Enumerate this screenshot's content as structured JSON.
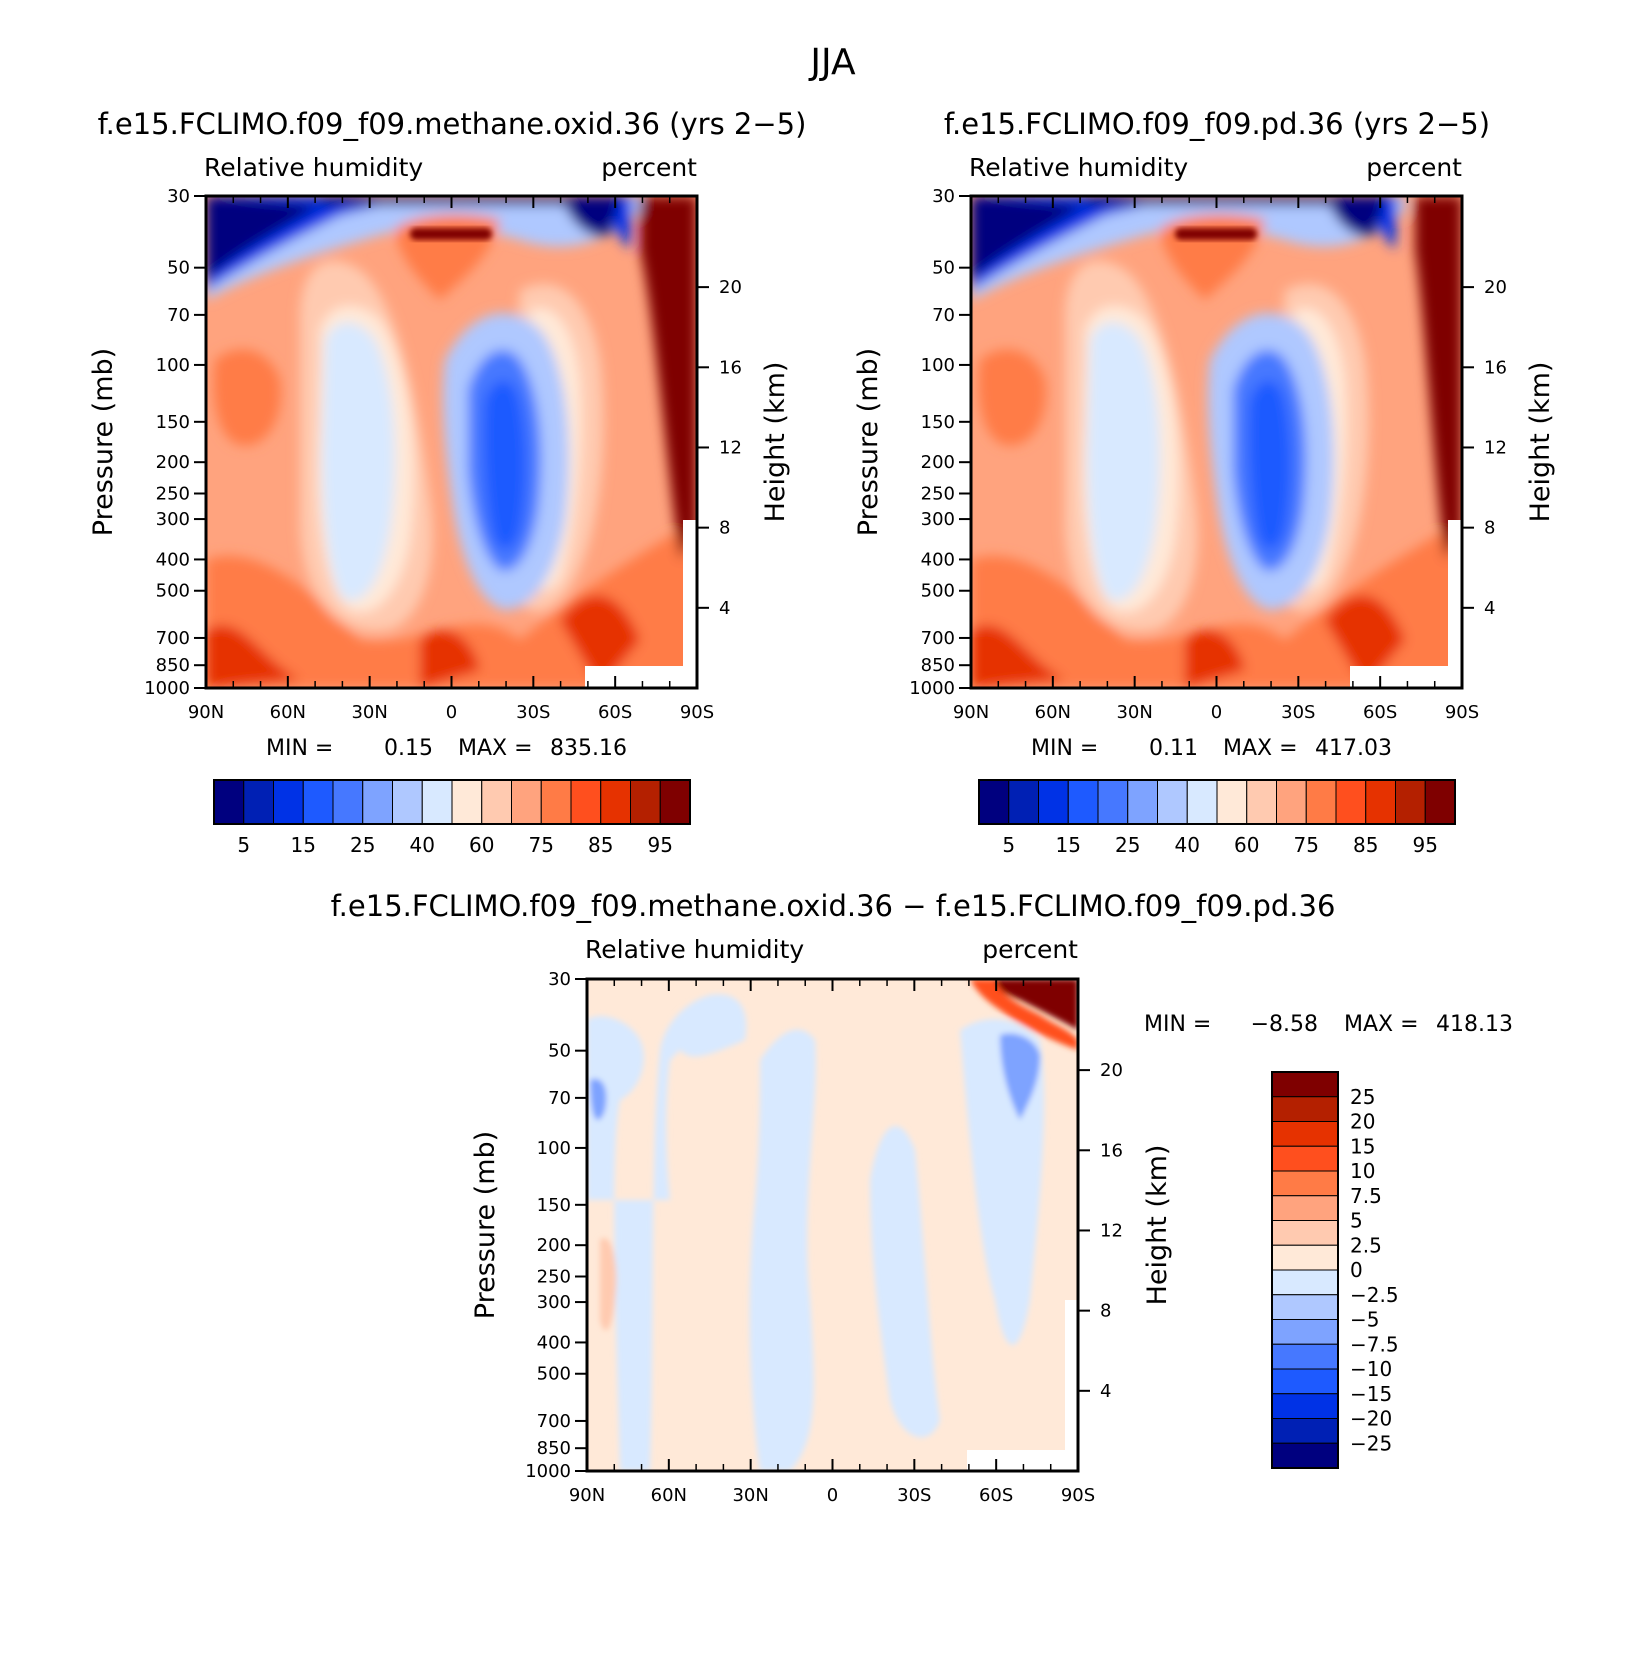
{
  "figure": {
    "title": "JJA"
  },
  "chart_data": [
    {
      "type": "heatmap",
      "title": "f.e15.FCLIMO.f09_f09.methane.oxid.36 (yrs 2−5)",
      "left_subtitle": "Relative humidity",
      "right_subtitle": "percent",
      "xlabel": "",
      "ylabel": "Pressure (mb)",
      "y2label": "Height (km)",
      "x_ticks": [
        "90N",
        "60N",
        "30N",
        "0",
        "30S",
        "60S",
        "90S"
      ],
      "y_ticks": [
        "30",
        "50",
        "70",
        "100",
        "150",
        "200",
        "250",
        "300",
        "400",
        "500",
        "700",
        "850",
        "1000"
      ],
      "y2_ticks": [
        "20",
        "16",
        "12",
        "8",
        "4"
      ],
      "ylim": [
        1000,
        30
      ],
      "y_scale": "log",
      "stats": {
        "min_label": "MIN =",
        "min": "0.15",
        "max_label": "MAX =",
        "max": "835.16"
      },
      "colorbar": {
        "orientation": "horizontal",
        "labels": [
          "5",
          "15",
          "25",
          "40",
          "60",
          "75",
          "85",
          "95"
        ],
        "colors": [
          "#00007f",
          "#0020b4",
          "#0032e6",
          "#1e5aff",
          "#4678ff",
          "#7ea3ff",
          "#afc8ff",
          "#d8e9ff",
          "#ffe9d8",
          "#ffcab0",
          "#ffa37e",
          "#ff7b46",
          "#ff4f1e",
          "#e63200",
          "#b42000",
          "#7f0000"
        ]
      },
      "regions": [
        {
          "level": "lowest",
          "description": "polar stratosphere"
        }
      ]
    },
    {
      "type": "heatmap",
      "title": "f.e15.FCLIMO.f09_f09.pd.36 (yrs 2−5)",
      "left_subtitle": "Relative humidity",
      "right_subtitle": "percent",
      "xlabel": "",
      "ylabel": "Pressure (mb)",
      "y2label": "Height (km)",
      "x_ticks": [
        "90N",
        "60N",
        "30N",
        "0",
        "30S",
        "60S",
        "90S"
      ],
      "y_ticks": [
        "30",
        "50",
        "70",
        "100",
        "150",
        "200",
        "250",
        "300",
        "400",
        "500",
        "700",
        "850",
        "1000"
      ],
      "y2_ticks": [
        "20",
        "16",
        "12",
        "8",
        "4"
      ],
      "ylim": [
        1000,
        30
      ],
      "y_scale": "log",
      "stats": {
        "min_label": "MIN =",
        "min": "0.11",
        "max_label": "MAX =",
        "max": "417.03"
      },
      "colorbar": {
        "orientation": "horizontal",
        "labels": [
          "5",
          "15",
          "25",
          "40",
          "60",
          "75",
          "85",
          "95"
        ],
        "colors": [
          "#00007f",
          "#0020b4",
          "#0032e6",
          "#1e5aff",
          "#4678ff",
          "#7ea3ff",
          "#afc8ff",
          "#d8e9ff",
          "#ffe9d8",
          "#ffcab0",
          "#ffa37e",
          "#ff7b46",
          "#ff4f1e",
          "#e63200",
          "#b42000",
          "#7f0000"
        ]
      }
    },
    {
      "type": "heatmap",
      "title": "f.e15.FCLIMO.f09_f09.methane.oxid.36 − f.e15.FCLIMO.f09_f09.pd.36",
      "left_subtitle": "Relative humidity",
      "right_subtitle": "percent",
      "xlabel": "",
      "ylabel": "Pressure (mb)",
      "y2label": "Height (km)",
      "x_ticks": [
        "90N",
        "60N",
        "30N",
        "0",
        "30S",
        "60S",
        "90S"
      ],
      "y_ticks": [
        "30",
        "50",
        "70",
        "100",
        "150",
        "200",
        "250",
        "300",
        "400",
        "500",
        "700",
        "850",
        "1000"
      ],
      "y2_ticks": [
        "20",
        "16",
        "12",
        "8",
        "4"
      ],
      "ylim": [
        1000,
        30
      ],
      "y_scale": "log",
      "stats": {
        "min_label": "MIN =",
        "min": "−8.58",
        "max_label": "MAX =",
        "max": "418.13"
      },
      "colorbar": {
        "orientation": "vertical",
        "labels": [
          "25",
          "20",
          "15",
          "10",
          "7.5",
          "5",
          "2.5",
          "0",
          "−2.5",
          "−5",
          "−7.5",
          "−10",
          "−15",
          "−20",
          "−25"
        ],
        "colors": [
          "#7f0000",
          "#b42000",
          "#e63200",
          "#ff4f1e",
          "#ff7b46",
          "#ffa37e",
          "#ffcab0",
          "#ffe9d8",
          "#d8e9ff",
          "#afc8ff",
          "#7ea3ff",
          "#4678ff",
          "#1e5aff",
          "#0032e6",
          "#0020b4",
          "#00007f"
        ]
      }
    }
  ]
}
